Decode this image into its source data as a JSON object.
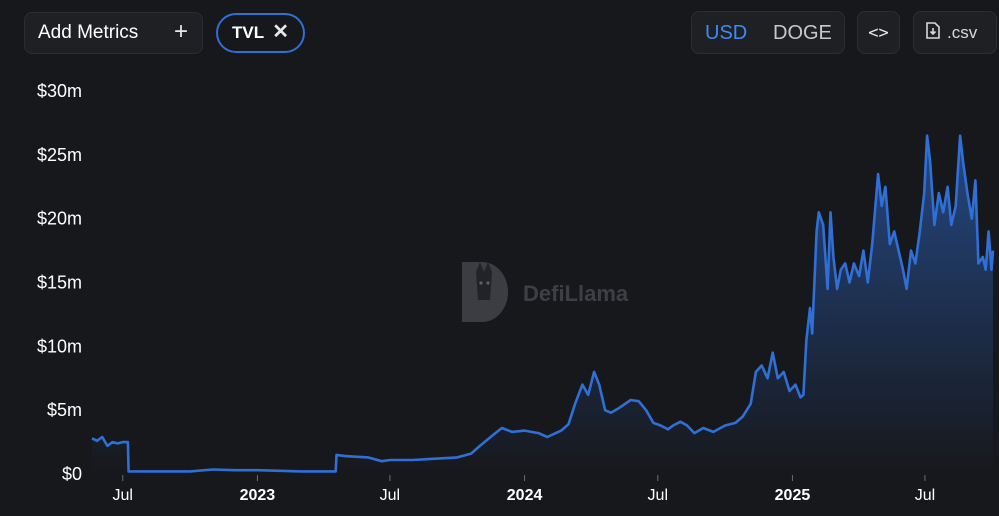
{
  "toolbar": {
    "add_metrics_label": "Add Metrics",
    "add_metrics_icon": "plus-icon",
    "active_metric": "TVL",
    "remove_icon": "close-icon",
    "denominations": [
      "USD",
      "DOGE"
    ],
    "selected_denomination": "USD",
    "embed_icon": "code-icon",
    "embed_label": "<>",
    "csv_label": ".csv",
    "csv_icon": "file-download-icon"
  },
  "watermark": {
    "text": "DefiLlama"
  },
  "colors": {
    "background": "#17181c",
    "line": "#2f6fd6",
    "accent": "#3d8af7"
  },
  "chart_data": {
    "type": "area",
    "series": [
      {
        "points": [
          [
            "2022-05-20",
            2.8
          ],
          [
            "2022-05-27",
            2.6
          ],
          [
            "2022-06-03",
            2.9
          ],
          [
            "2022-06-10",
            2.2
          ],
          [
            "2022-06-17",
            2.5
          ],
          [
            "2022-06-24",
            2.4
          ],
          [
            "2022-07-01",
            2.5
          ],
          [
            "2022-07-08",
            2.5
          ],
          [
            "2022-07-09",
            0.2
          ],
          [
            "2022-08-01",
            0.2
          ],
          [
            "2022-10-01",
            0.2
          ],
          [
            "2022-11-01",
            0.35
          ],
          [
            "2022-12-01",
            0.3
          ],
          [
            "2023-01-01",
            0.3
          ],
          [
            "2023-02-01",
            0.25
          ],
          [
            "2023-03-01",
            0.2
          ],
          [
            "2023-04-18",
            0.2
          ],
          [
            "2023-04-19",
            1.5
          ],
          [
            "2023-05-01",
            1.4
          ],
          [
            "2023-06-01",
            1.3
          ],
          [
            "2023-06-20",
            1.0
          ],
          [
            "2023-07-01",
            1.1
          ],
          [
            "2023-08-01",
            1.1
          ],
          [
            "2023-09-01",
            1.2
          ],
          [
            "2023-10-01",
            1.3
          ],
          [
            "2023-10-20",
            1.6
          ],
          [
            "2023-11-01",
            2.2
          ],
          [
            "2023-11-20",
            3.1
          ],
          [
            "2023-12-01",
            3.6
          ],
          [
            "2023-12-15",
            3.3
          ],
          [
            "2024-01-01",
            3.4
          ],
          [
            "2024-01-20",
            3.2
          ],
          [
            "2024-02-01",
            2.9
          ],
          [
            "2024-02-20",
            3.4
          ],
          [
            "2024-03-01",
            3.9
          ],
          [
            "2024-03-10",
            5.5
          ],
          [
            "2024-03-20",
            7.0
          ],
          [
            "2024-03-28",
            6.2
          ],
          [
            "2024-04-05",
            8.0
          ],
          [
            "2024-04-12",
            7.0
          ],
          [
            "2024-04-20",
            5.0
          ],
          [
            "2024-04-28",
            4.8
          ],
          [
            "2024-05-10",
            5.2
          ],
          [
            "2024-05-25",
            5.8
          ],
          [
            "2024-06-05",
            5.7
          ],
          [
            "2024-06-15",
            5.0
          ],
          [
            "2024-06-25",
            4.0
          ],
          [
            "2024-07-05",
            3.8
          ],
          [
            "2024-07-15",
            3.5
          ],
          [
            "2024-07-22",
            3.8
          ],
          [
            "2024-08-01",
            4.1
          ],
          [
            "2024-08-10",
            3.8
          ],
          [
            "2024-08-20",
            3.2
          ],
          [
            "2024-09-01",
            3.6
          ],
          [
            "2024-09-15",
            3.3
          ],
          [
            "2024-10-01",
            3.8
          ],
          [
            "2024-10-15",
            4.0
          ],
          [
            "2024-10-25",
            4.5
          ],
          [
            "2024-11-05",
            5.5
          ],
          [
            "2024-11-12",
            8.0
          ],
          [
            "2024-11-20",
            8.5
          ],
          [
            "2024-11-28",
            7.5
          ],
          [
            "2024-12-05",
            9.5
          ],
          [
            "2024-12-12",
            7.5
          ],
          [
            "2024-12-20",
            8.0
          ],
          [
            "2024-12-28",
            6.5
          ],
          [
            "2025-01-05",
            7.0
          ],
          [
            "2025-01-12",
            6.0
          ],
          [
            "2025-01-16",
            6.2
          ],
          [
            "2025-01-20",
            10.5
          ],
          [
            "2025-01-25",
            13.0
          ],
          [
            "2025-01-28",
            11.0
          ],
          [
            "2025-02-03",
            19.0
          ],
          [
            "2025-02-06",
            20.5
          ],
          [
            "2025-02-12",
            19.5
          ],
          [
            "2025-02-18",
            14.5
          ],
          [
            "2025-02-22",
            20.5
          ],
          [
            "2025-02-26",
            17.0
          ],
          [
            "2025-03-03",
            14.5
          ],
          [
            "2025-03-08",
            16.0
          ],
          [
            "2025-03-14",
            16.5
          ],
          [
            "2025-03-20",
            15.0
          ],
          [
            "2025-03-26",
            16.5
          ],
          [
            "2025-04-02",
            15.5
          ],
          [
            "2025-04-08",
            17.5
          ],
          [
            "2025-04-14",
            15.0
          ],
          [
            "2025-04-20",
            18.0
          ],
          [
            "2025-04-28",
            23.5
          ],
          [
            "2025-05-03",
            21.0
          ],
          [
            "2025-05-08",
            22.5
          ],
          [
            "2025-05-14",
            18.0
          ],
          [
            "2025-05-20",
            19.0
          ],
          [
            "2025-05-26",
            17.5
          ],
          [
            "2025-06-01",
            16.0
          ],
          [
            "2025-06-06",
            14.5
          ],
          [
            "2025-06-12",
            17.5
          ],
          [
            "2025-06-18",
            16.5
          ],
          [
            "2025-06-24",
            19.0
          ],
          [
            "2025-06-30",
            22.0
          ],
          [
            "2025-07-04",
            26.5
          ],
          [
            "2025-07-08",
            24.5
          ],
          [
            "2025-07-14",
            19.5
          ],
          [
            "2025-07-20",
            22.0
          ],
          [
            "2025-07-26",
            20.5
          ],
          [
            "2025-08-01",
            22.5
          ],
          [
            "2025-08-06",
            19.5
          ],
          [
            "2025-08-12",
            21.0
          ],
          [
            "2025-08-18",
            26.5
          ],
          [
            "2025-08-22",
            24.5
          ],
          [
            "2025-08-28",
            22.0
          ],
          [
            "2025-09-03",
            20.0
          ],
          [
            "2025-09-08",
            23.0
          ],
          [
            "2025-09-12",
            16.5
          ],
          [
            "2025-09-18",
            17.0
          ],
          [
            "2025-09-22",
            16.0
          ],
          [
            "2025-09-26",
            19.0
          ],
          [
            "2025-09-30",
            16.0
          ],
          [
            "2025-10-02",
            17.5
          ]
        ]
      }
    ],
    "x_range": [
      "2022-05-20",
      "2025-10-02"
    ],
    "x_ticks": [
      {
        "label": "Jul",
        "date": "2022-07-01"
      },
      {
        "label": "2023",
        "date": "2023-01-01"
      },
      {
        "label": "Jul",
        "date": "2023-07-01"
      },
      {
        "label": "2024",
        "date": "2024-01-01"
      },
      {
        "label": "Jul",
        "date": "2024-07-01"
      },
      {
        "label": "2025",
        "date": "2025-01-01"
      },
      {
        "label": "Jul",
        "date": "2025-07-01"
      }
    ],
    "y_ticks": [
      {
        "label": "$0",
        "value": 0
      },
      {
        "label": "$5m",
        "value": 5
      },
      {
        "label": "$10m",
        "value": 10
      },
      {
        "label": "$15m",
        "value": 15
      },
      {
        "label": "$20m",
        "value": 20
      },
      {
        "label": "$25m",
        "value": 25
      },
      {
        "label": "$30m",
        "value": 30
      }
    ],
    "ylim": [
      0,
      30
    ],
    "y_unit": "USD millions",
    "grid": false,
    "legend": "none"
  }
}
